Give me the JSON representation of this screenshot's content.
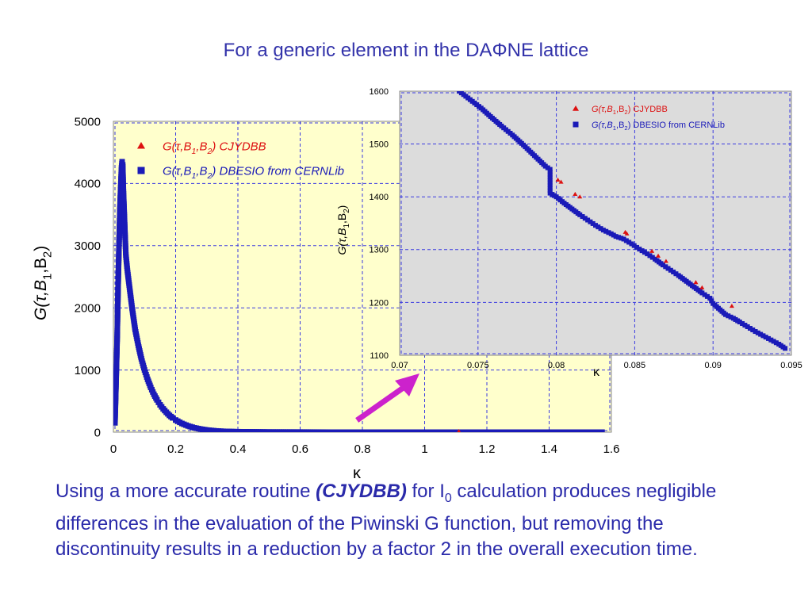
{
  "slide": {
    "title": "For a generic element in the DAΦNE lattice",
    "caption": {
      "part1": "Using a more accurate routine ",
      "emphasis": "(CJYDBB)",
      "part2": " for I",
      "sub": "0",
      "part3": " calculation produces negligible differences in the evaluation of the Piwinski G function, but removing the discontinuity results in a reduction by a factor 2 in the overall execution time."
    }
  },
  "colors": {
    "text_blue": "#3333aa",
    "cjydbb_red": "#dd1111",
    "dbesio_blue": "#1a1ab8",
    "main_bg": "#ffffcc",
    "inset_bg": "#dcdcdc",
    "grid": "#3a3ae0",
    "arrow": "#cc22cc"
  },
  "chart_data": [
    {
      "type": "scatter",
      "xlabel": "κ",
      "ylabel": "G(τ,B1,B2)",
      "xlim": [
        0,
        1.6
      ],
      "ylim": [
        0,
        5000
      ],
      "xticks": [
        "0",
        "0.2",
        "0.4",
        "0.6",
        "0.8",
        "1",
        "1.2",
        "1.4",
        "1.6"
      ],
      "yticks": [
        "0",
        "1000",
        "2000",
        "3000",
        "4000",
        "5000"
      ],
      "grid": true,
      "legend_position": "top-left",
      "legend": [
        "G(τ,B1,B2) CJYDBB",
        "G(τ,B1,B2) DBESIO from CERNLib"
      ],
      "series": [
        {
          "name": "G(τ,B1,B2) CJYDBB",
          "marker": "triangle",
          "points": [
            [
              1.11,
              0
            ]
          ]
        },
        {
          "name": "G(τ,B1,B2) DBESIO from CERNLib",
          "marker": "square",
          "points": [
            [
              0.005,
              150
            ],
            [
              0.008,
              700
            ],
            [
              0.012,
              1500
            ],
            [
              0.015,
              2300
            ],
            [
              0.018,
              3000
            ],
            [
              0.021,
              3600
            ],
            [
              0.024,
              4000
            ],
            [
              0.026,
              4250
            ],
            [
              0.028,
              4350
            ],
            [
              0.03,
              4300
            ],
            [
              0.032,
              3900
            ],
            [
              0.035,
              3500
            ],
            [
              0.038,
              3100
            ],
            [
              0.04,
              2850
            ],
            [
              0.045,
              2600
            ],
            [
              0.05,
              2400
            ],
            [
              0.06,
              2000
            ],
            [
              0.07,
              1650
            ],
            [
              0.08,
              1400
            ],
            [
              0.09,
              1180
            ],
            [
              0.1,
              1000
            ],
            [
              0.11,
              850
            ],
            [
              0.12,
              720
            ],
            [
              0.13,
              610
            ],
            [
              0.14,
              520
            ],
            [
              0.15,
              440
            ],
            [
              0.16,
              375
            ],
            [
              0.17,
              320
            ],
            [
              0.18,
              270
            ],
            [
              0.19,
              230
            ],
            [
              0.2,
              195
            ],
            [
              0.22,
              140
            ],
            [
              0.24,
              100
            ],
            [
              0.26,
              70
            ],
            [
              0.28,
              50
            ],
            [
              0.3,
              35
            ],
            [
              0.33,
              20
            ],
            [
              0.36,
              12
            ],
            [
              0.4,
              7
            ],
            [
              0.5,
              2
            ],
            [
              0.6,
              1
            ],
            [
              0.7,
              0
            ],
            [
              0.8,
              0
            ],
            [
              0.9,
              0
            ],
            [
              1.0,
              0
            ],
            [
              1.1,
              0
            ],
            [
              1.2,
              0
            ],
            [
              1.3,
              0
            ],
            [
              1.4,
              0
            ],
            [
              1.5,
              0
            ],
            [
              1.57,
              0
            ]
          ]
        }
      ]
    },
    {
      "type": "scatter",
      "xlabel": "κ",
      "ylabel": "G(τ,B1,B2)",
      "xlim": [
        0.07,
        0.095
      ],
      "ylim": [
        1100,
        1600
      ],
      "xticks": [
        "0.07",
        "0.075",
        "0.08",
        "0.085",
        "0.09",
        "0.095"
      ],
      "yticks": [
        "1100",
        "1200",
        "1300",
        "1400",
        "1500",
        "1600"
      ],
      "grid": true,
      "legend_position": "top-right",
      "legend": [
        "G(τ,B1,B2) CJYDBB",
        "G(τ,B1,B2) DBESIO from CERNLib"
      ],
      "series": [
        {
          "name": "G(τ,B1,B2) CJYDBB",
          "marker": "triangle",
          "points": [
            [
              0.0801,
              1432
            ],
            [
              0.0803,
              1428
            ],
            [
              0.0812,
              1405
            ],
            [
              0.0815,
              1400
            ],
            [
              0.0844,
              1333
            ],
            [
              0.0845,
              1330
            ],
            [
              0.0861,
              1297
            ],
            [
              0.0865,
              1288
            ],
            [
              0.087,
              1278
            ],
            [
              0.0889,
              1238
            ],
            [
              0.0893,
              1228
            ],
            [
              0.0912,
              1193
            ]
          ]
        },
        {
          "name": "G(τ,B1,B2) DBESIO from CERNLib",
          "marker": "square",
          "points": [
            [
              0.0738,
              1600
            ],
            [
              0.0745,
              1584
            ],
            [
              0.0752,
              1568
            ],
            [
              0.0758,
              1552
            ],
            [
              0.0765,
              1534
            ],
            [
              0.0772,
              1517
            ],
            [
              0.0779,
              1498
            ],
            [
              0.0786,
              1478
            ],
            [
              0.0793,
              1458
            ],
            [
              0.0796,
              1452
            ],
            [
              0.0796,
              1407
            ],
            [
              0.08,
              1400
            ],
            [
              0.0805,
              1388
            ],
            [
              0.081,
              1377
            ],
            [
              0.0815,
              1366
            ],
            [
              0.082,
              1356
            ],
            [
              0.0825,
              1346
            ],
            [
              0.083,
              1337
            ],
            [
              0.0835,
              1330
            ],
            [
              0.0838,
              1325
            ],
            [
              0.0843,
              1320
            ],
            [
              0.0848,
              1311
            ],
            [
              0.0853,
              1301
            ],
            [
              0.0858,
              1292
            ],
            [
              0.0863,
              1282
            ],
            [
              0.0868,
              1271
            ],
            [
              0.0873,
              1261
            ],
            [
              0.0878,
              1251
            ],
            [
              0.0883,
              1240
            ],
            [
              0.0888,
              1229
            ],
            [
              0.0893,
              1218
            ],
            [
              0.0898,
              1208
            ],
            [
              0.09,
              1198
            ],
            [
              0.0908,
              1177
            ],
            [
              0.0913,
              1170
            ],
            [
              0.0917,
              1163
            ],
            [
              0.0922,
              1154
            ],
            [
              0.0927,
              1145
            ],
            [
              0.0932,
              1137
            ],
            [
              0.0937,
              1129
            ],
            [
              0.0942,
              1121
            ],
            [
              0.0946,
              1113
            ]
          ]
        }
      ]
    }
  ]
}
